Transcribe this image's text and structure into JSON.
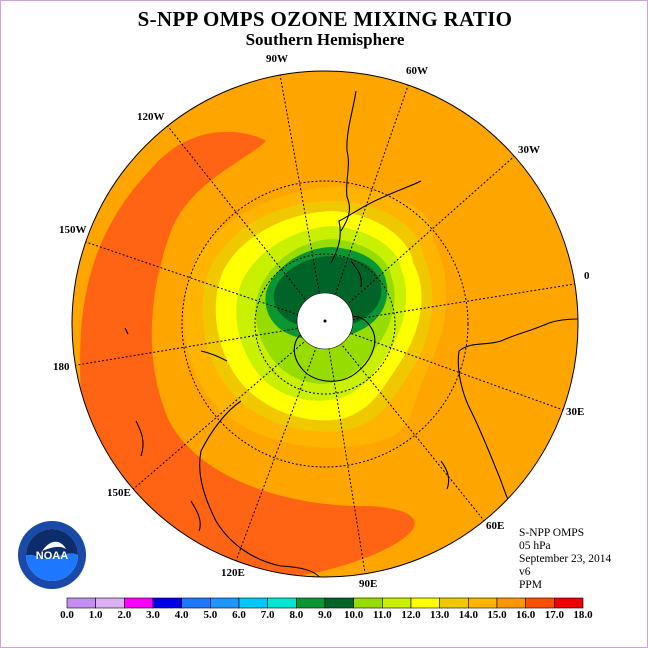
{
  "header": {
    "title": "S-NPP OMPS OZONE MIXING RATIO",
    "subtitle": "Southern Hemisphere"
  },
  "map": {
    "longitude_labels": [
      "90W",
      "60W",
      "30W",
      "0",
      "30E",
      "60E",
      "90E",
      "120E",
      "150E",
      "180",
      "150W",
      "120W"
    ],
    "center": "South Pole",
    "projection": "polar stereographic"
  },
  "info": {
    "instrument": "S-NPP OMPS",
    "pressure_level": "05 hPa",
    "date": "September 23, 2014",
    "version": "v6",
    "units": "PPM"
  },
  "logo": {
    "text": "NOAA"
  },
  "colorbar": {
    "labels": [
      "0.0",
      "1.0",
      "2.0",
      "3.0",
      "4.0",
      "5.0",
      "6.0",
      "7.0",
      "8.0",
      "9.0",
      "10.0",
      "11.0",
      "12.0",
      "13.0",
      "14.0",
      "15.0",
      "16.0",
      "17.0",
      "18.0"
    ],
    "colors": [
      "#c48ef0",
      "#d9b0f2",
      "#ff00ff",
      "#0000e6",
      "#1e78ff",
      "#1e96ff",
      "#00c8ff",
      "#00e6d2",
      "#0a9632",
      "#006428",
      "#96dc00",
      "#c8f000",
      "#ffff00",
      "#f0c800",
      "#ffb400",
      "#ff9600",
      "#ff5000",
      "#f00000",
      "#8c5032"
    ]
  },
  "palette": {
    "ocean_orange": "#ffa500",
    "dark_orange": "#ff6414",
    "yellow": "#ffff00",
    "green": "#96dc00",
    "dark_green": "#006428"
  }
}
